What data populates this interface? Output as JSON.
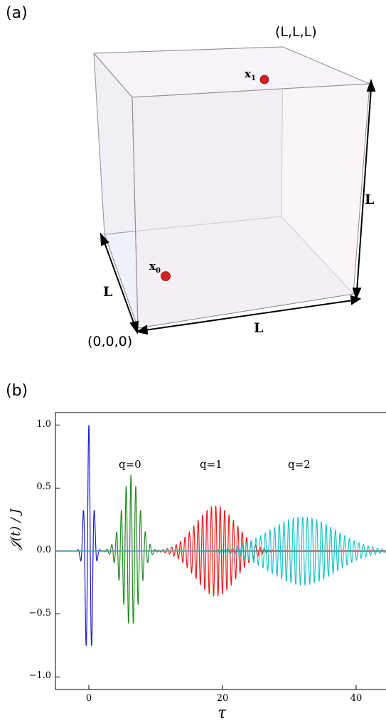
{
  "panel_a": {
    "label": "(a)",
    "corner_top": "(L,L,L)",
    "corner_origin": "(0,0,0)",
    "edge_vertical": "L",
    "edge_depth": "L",
    "edge_horizontal": "L",
    "point_1": {
      "name": "x",
      "sub": "1",
      "color": "#d42020"
    },
    "point_0": {
      "name": "x",
      "sub": "0",
      "color": "#d42020"
    }
  },
  "panel_b": {
    "label": "(b)",
    "ylabel": "𝒥(t) / J",
    "xlabel": "τ",
    "annotations": [
      "q=0",
      "q=1",
      "q=2"
    ]
  },
  "chart_data": {
    "type": "line",
    "xlim": [
      -5,
      45
    ],
    "ylim": [
      -1.1,
      1.1
    ],
    "xticks": [
      0,
      20,
      40
    ],
    "xtick_labels": [
      "0",
      "20",
      "40"
    ],
    "yticks": [
      1.0,
      0.5,
      0.0,
      -0.5,
      -1.0
    ],
    "ytick_labels": [
      "1.0",
      "0.5",
      "0.0",
      "−0.5",
      "−1.0"
    ],
    "grid": false,
    "series": [
      {
        "color": "#1f1fd0",
        "center": 0.0,
        "amplitude": 1.0,
        "width": 0.55,
        "period": 0.85
      },
      {
        "color": "#228b22",
        "center": 6.3,
        "amplitude": 0.6,
        "width": 1.3,
        "period": 0.72
      },
      {
        "color": "#ee1c1c",
        "center": 19.0,
        "amplitude": 0.36,
        "width": 3.0,
        "period": 0.66
      },
      {
        "color": "#1fc3c8",
        "center": 32.0,
        "amplitude": 0.27,
        "width": 5.0,
        "period": 0.7
      }
    ]
  }
}
